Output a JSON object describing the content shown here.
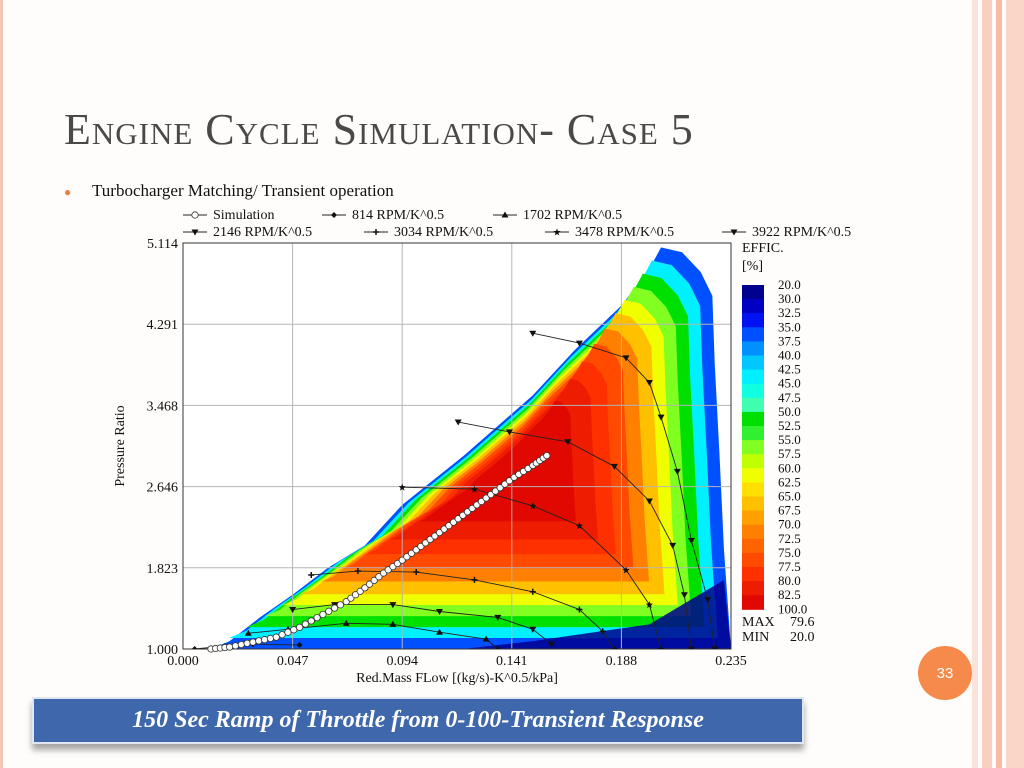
{
  "slide": {
    "title": "Engine Cycle Simulation- Case 5",
    "bullet": "Turbocharger Matching/ Transient operation",
    "caption": "150 Sec Ramp of Throttle from 0-100-Transient Response",
    "page_number": "33",
    "colors": {
      "title": "#4d4848",
      "accent": "#f58a4a",
      "caption_bg": "#3e67ac"
    }
  },
  "chart_data": {
    "type": "heatmap",
    "xlabel": "Red.Mass FLow [(kg/s)-K^0.5/kPa]",
    "ylabel": "Pressure Ratio",
    "xlim": [
      0.0,
      0.235
    ],
    "ylim": [
      1.0,
      5.114
    ],
    "x_ticks": [
      "0.000",
      "0.047",
      "0.094",
      "0.141",
      "0.188",
      "0.235"
    ],
    "y_ticks": [
      "1.000",
      "1.823",
      "2.646",
      "3.468",
      "4.291",
      "5.114"
    ],
    "grid": true,
    "legend": [
      {
        "name": "Simulation",
        "marker": "circle-open"
      },
      {
        "name": "814 RPM/K^0.5",
        "marker": "diamond"
      },
      {
        "name": "1702 RPM/K^0.5",
        "marker": "triangle-up"
      },
      {
        "name": "2146 RPM/K^0.5",
        "marker": "triangle-down"
      },
      {
        "name": "3034 RPM/K^0.5",
        "marker": "plus"
      },
      {
        "name": "3478 RPM/K^0.5",
        "marker": "star"
      },
      {
        "name": "3922 RPM/K^0.5",
        "marker": "triangle-down"
      }
    ],
    "colorbar": {
      "title": "EFFIC.",
      "unit": "[%]",
      "levels": [
        "20.0",
        "30.0",
        "32.5",
        "35.0",
        "37.5",
        "40.0",
        "42.5",
        "45.0",
        "47.5",
        "50.0",
        "52.5",
        "55.0",
        "57.5",
        "60.0",
        "62.5",
        "65.0",
        "67.5",
        "70.0",
        "72.5",
        "75.0",
        "77.5",
        "80.0",
        "82.5",
        "100.0"
      ],
      "colors": [
        "#00008f",
        "#0000c4",
        "#0012f2",
        "#0050ff",
        "#0090ff",
        "#00c8ff",
        "#00f0ff",
        "#10ffe0",
        "#40ffb0",
        "#00e000",
        "#30f030",
        "#80ff20",
        "#c0ff00",
        "#f0ff00",
        "#ffe000",
        "#ffc000",
        "#ffa000",
        "#ff8000",
        "#ff6400",
        "#ff4a00",
        "#ff3000",
        "#ee1c00",
        "#e00800"
      ],
      "max_label": "MAX",
      "max_value": "79.6",
      "min_label": "MIN",
      "min_value": "20.0"
    },
    "surge_line": [
      [
        0.012,
        1.0
      ],
      [
        0.02,
        1.08
      ],
      [
        0.033,
        1.32
      ],
      [
        0.047,
        1.55
      ],
      [
        0.062,
        1.82
      ],
      [
        0.078,
        2.05
      ],
      [
        0.094,
        2.46
      ],
      [
        0.12,
        2.95
      ],
      [
        0.15,
        3.57
      ],
      [
        0.168,
        4.03
      ],
      [
        0.188,
        4.48
      ],
      [
        0.2,
        4.85
      ],
      [
        0.205,
        5.07
      ]
    ],
    "choke_line": [
      [
        0.205,
        5.07
      ],
      [
        0.214,
        5.02
      ],
      [
        0.222,
        4.82
      ],
      [
        0.227,
        4.58
      ],
      [
        0.228,
        3.9
      ],
      [
        0.23,
        3.0
      ],
      [
        0.232,
        2.0
      ],
      [
        0.235,
        1.0
      ]
    ],
    "speed_lines": [
      {
        "name": "814 RPM/K^0.5",
        "points": [
          [
            0.005,
            1.0
          ],
          [
            0.018,
            1.03
          ],
          [
            0.03,
            1.05
          ],
          [
            0.05,
            1.04
          ]
        ]
      },
      {
        "name": "1702 RPM/K^0.5",
        "points": [
          [
            0.028,
            1.16
          ],
          [
            0.045,
            1.2
          ],
          [
            0.07,
            1.26
          ],
          [
            0.09,
            1.25
          ],
          [
            0.11,
            1.17
          ],
          [
            0.13,
            1.1
          ],
          [
            0.135,
            1.0
          ]
        ]
      },
      {
        "name": "2146 RPM/K^0.5",
        "points": [
          [
            0.047,
            1.4
          ],
          [
            0.065,
            1.45
          ],
          [
            0.09,
            1.45
          ],
          [
            0.11,
            1.38
          ],
          [
            0.135,
            1.32
          ],
          [
            0.15,
            1.2
          ],
          [
            0.158,
            1.05
          ]
        ]
      },
      {
        "name": "3034 RPM/K^0.5",
        "points": [
          [
            0.055,
            1.75
          ],
          [
            0.075,
            1.79
          ],
          [
            0.1,
            1.78
          ],
          [
            0.125,
            1.7
          ],
          [
            0.15,
            1.58
          ],
          [
            0.17,
            1.4
          ],
          [
            0.18,
            1.18
          ],
          [
            0.185,
            1.0
          ]
        ]
      },
      {
        "name": "3478 RPM/K^0.5",
        "points": [
          [
            0.094,
            2.64
          ],
          [
            0.125,
            2.62
          ],
          [
            0.15,
            2.45
          ],
          [
            0.17,
            2.25
          ],
          [
            0.19,
            1.8
          ],
          [
            0.2,
            1.45
          ],
          [
            0.205,
            1.0
          ]
        ]
      },
      {
        "name": "2146 RPM/K^0.5 upper",
        "points": [
          [
            0.118,
            3.3
          ],
          [
            0.14,
            3.2
          ],
          [
            0.165,
            3.1
          ],
          [
            0.185,
            2.85
          ],
          [
            0.2,
            2.5
          ],
          [
            0.21,
            2.05
          ],
          [
            0.215,
            1.55
          ],
          [
            0.218,
            1.0
          ]
        ]
      },
      {
        "name": "3922 RPM/K^0.5",
        "points": [
          [
            0.15,
            4.2
          ],
          [
            0.17,
            4.1
          ],
          [
            0.19,
            3.95
          ],
          [
            0.2,
            3.7
          ],
          [
            0.205,
            3.35
          ],
          [
            0.212,
            2.8
          ],
          [
            0.218,
            2.1
          ],
          [
            0.225,
            1.5
          ],
          [
            0.228,
            1.0
          ]
        ]
      }
    ],
    "simulation": [
      [
        0.012,
        1.0
      ],
      [
        0.02,
        1.02
      ],
      [
        0.03,
        1.07
      ],
      [
        0.04,
        1.12
      ],
      [
        0.05,
        1.22
      ],
      [
        0.06,
        1.35
      ],
      [
        0.07,
        1.48
      ],
      [
        0.078,
        1.62
      ],
      [
        0.086,
        1.77
      ],
      [
        0.094,
        1.9
      ],
      [
        0.102,
        2.04
      ],
      [
        0.11,
        2.18
      ],
      [
        0.118,
        2.32
      ],
      [
        0.126,
        2.46
      ],
      [
        0.134,
        2.6
      ],
      [
        0.142,
        2.74
      ],
      [
        0.15,
        2.86
      ],
      [
        0.156,
        2.96
      ]
    ]
  }
}
